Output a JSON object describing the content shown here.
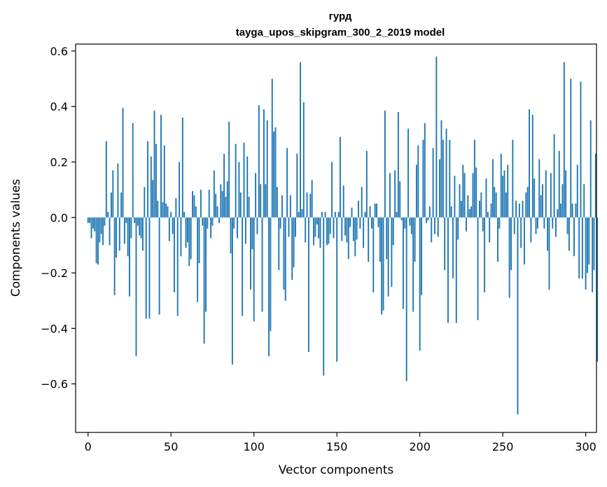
{
  "chart_data": {
    "type": "bar",
    "title": "гурд",
    "subtitle": "tayga_upos_skipgram_300_2_2019 model",
    "xlabel": "Vector components",
    "ylabel": "Components values",
    "xlim": [
      -7.5,
      306.5
    ],
    "ylim": [
      -0.775,
      0.625
    ],
    "x_ticks": [
      0,
      50,
      100,
      150,
      200,
      250,
      300
    ],
    "y_ticks": [
      -0.6,
      -0.4,
      -0.2,
      0.0,
      0.2,
      0.4,
      0.6
    ],
    "bar_color": "#1f77b4",
    "grid": false,
    "values": [
      -0.02,
      -0.02,
      -0.075,
      -0.04,
      -0.05,
      -0.165,
      -0.17,
      -0.09,
      -0.06,
      -0.1,
      -0.03,
      0.275,
      0.02,
      -0.1,
      0.09,
      0.17,
      -0.28,
      -0.145,
      0.195,
      -0.12,
      0.09,
      0.395,
      -0.095,
      -0.02,
      -0.14,
      -0.285,
      -0.075,
      0.34,
      -0.02,
      -0.5,
      -0.03,
      -0.065,
      -0.075,
      -0.12,
      0.11,
      -0.365,
      0.275,
      -0.365,
      0.22,
      0.135,
      0.385,
      0.265,
      0.06,
      -0.35,
      0.37,
      0.055,
      0.26,
      0.05,
      0.04,
      -0.085,
      0.02,
      -0.06,
      -0.27,
      0.07,
      -0.355,
      0.2,
      -0.14,
      0.36,
      0.02,
      -0.11,
      -0.09,
      -0.175,
      -0.15,
      0.095,
      0.08,
      0.04,
      -0.305,
      -0.165,
      0.1,
      -0.03,
      -0.455,
      -0.34,
      -0.04,
      0.1,
      -0.075,
      -0.03,
      0.17,
      0.085,
      0.04,
      -0.02,
      0.12,
      0.095,
      0.23,
      0.075,
      0.13,
      0.345,
      -0.13,
      -0.53,
      -0.04,
      0.265,
      -0.075,
      0.2,
      0.09,
      -0.355,
      0.27,
      -0.095,
      0.22,
      0.075,
      -0.26,
      -0.115,
      -0.375,
      0.16,
      -0.06,
      0.405,
      0.12,
      -0.34,
      0.39,
      0.12,
      0.35,
      -0.5,
      -0.41,
      0.5,
      0.31,
      0.325,
      0.11,
      -0.19,
      -0.04,
      0.08,
      -0.26,
      -0.3,
      0.25,
      -0.07,
      0.08,
      -0.225,
      -0.18,
      -0.07,
      0.23,
      0.02,
      0.56,
      0.03,
      0.415,
      -0.09,
      0.09,
      -0.485,
      0.085,
      0.135,
      -0.1,
      -0.07,
      -0.025,
      -0.075,
      -0.11,
      0.02,
      -0.57,
      0.02,
      -0.1,
      -0.095,
      -0.06,
      0.2,
      -0.075,
      0.02,
      -0.52,
      0.02,
      0.29,
      -0.085,
      0.115,
      -0.065,
      -0.09,
      -0.15,
      -0.035,
      0.035,
      -0.085,
      -0.14,
      -0.08,
      0.06,
      -0.04,
      0.11,
      -0.11,
      0.02,
      0.24,
      -0.16,
      0.04,
      -0.04,
      -0.27,
      0.05,
      0.05,
      -0.035,
      -0.16,
      -0.35,
      -0.335,
      0.385,
      -0.15,
      -0.285,
      0.16,
      -0.25,
      -0.1,
      0.17,
      0.02,
      0.38,
      0.13,
      -0.01,
      -0.33,
      -0.04,
      -0.59,
      0.32,
      -0.03,
      -0.06,
      -0.34,
      -0.16,
      0.19,
      0.26,
      -0.48,
      -0.28,
      0.28,
      0.34,
      -0.02,
      -0.01,
      0.04,
      -0.09,
      0.25,
      -0.06,
      0.58,
      -0.07,
      0.21,
      0.35,
      0.28,
      -0.19,
      0.32,
      -0.38,
      0.28,
      0.04,
      -0.22,
      0.15,
      -0.38,
      -0.08,
      0.12,
      0.06,
      0.19,
      0.16,
      -0.05,
      0.08,
      0.03,
      0.04,
      0.16,
      0.28,
      0.18,
      -0.37,
      0.06,
      0.09,
      -0.05,
      -0.27,
      0.14,
      0.02,
      -0.09,
      0.05,
      0.21,
      0.11,
      0.09,
      -0.16,
      -0.04,
      0.23,
      0.15,
      0.17,
      0.09,
      0.19,
      -0.29,
      -0.19,
      0.28,
      -0.06,
      0.06,
      -0.71,
      0.05,
      -0.11,
      0.06,
      -0.17,
      0.09,
      0.11,
      0.39,
      -0.09,
      0.37,
      0.14,
      -0.06,
      -0.04,
      0.21,
      0.08,
      0.12,
      -0.04,
      0.17,
      -0.12,
      -0.26,
      0.16,
      -0.04,
      0.3,
      -0.07,
      0.03,
      0.24,
      0.05,
      0.12,
      0.56,
      0.17,
      -0.06,
      -0.12,
      0.5,
      0.05,
      -0.14,
      0.05,
      0.19,
      -0.22,
      0.49,
      -0.22,
      0.12,
      -0.26,
      -0.2,
      -0.17,
      0.35,
      -0.27,
      -0.19,
      0.23,
      -0.52
    ]
  }
}
